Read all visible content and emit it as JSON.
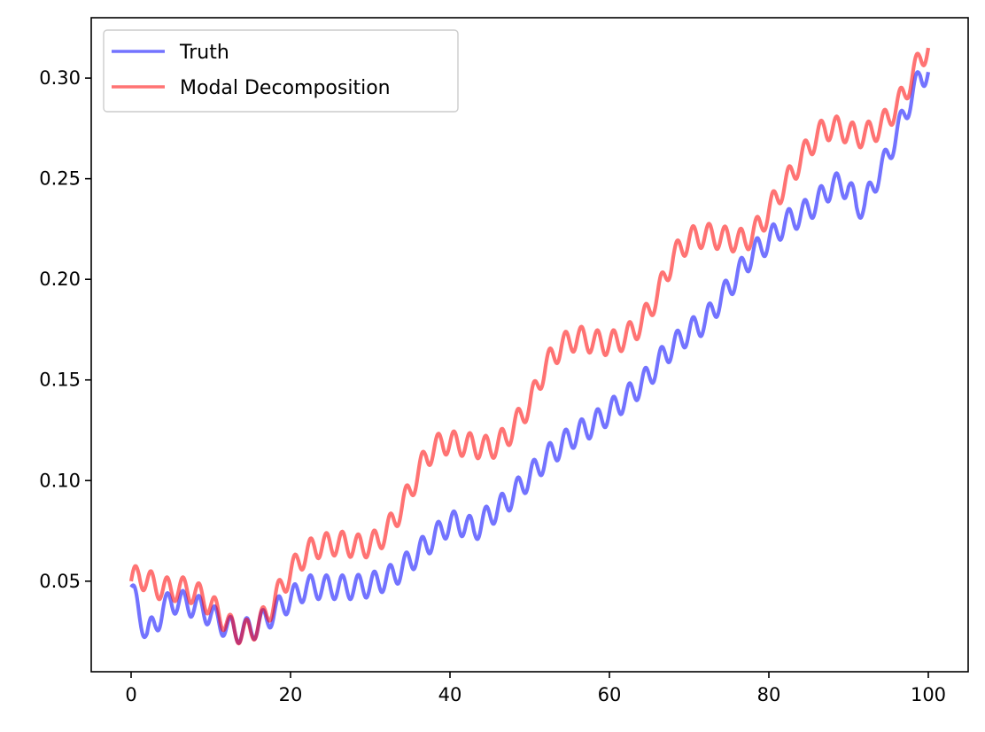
{
  "chart_data": {
    "type": "line",
    "title": "",
    "xlabel": "",
    "ylabel": "",
    "xlim": [
      -5,
      105
    ],
    "ylim": [
      0.005,
      0.33
    ],
    "xticks": [
      0,
      20,
      40,
      60,
      80,
      100
    ],
    "xtick_labels": [
      "0",
      "20",
      "40",
      "60",
      "80",
      "100"
    ],
    "yticks": [
      0.05,
      0.1,
      0.15,
      0.2,
      0.25,
      0.3
    ],
    "ytick_labels": [
      "0.05",
      "0.10",
      "0.15",
      "0.20",
      "0.25",
      "0.30"
    ],
    "grid": false,
    "legend_location": "upper left",
    "series": [
      {
        "name": "Truth",
        "color": "#0000ff",
        "alpha": 0.55,
        "oscillation_amplitude": 0.006,
        "oscillation_period": 2.0,
        "trend_points": [
          [
            0,
            0.047
          ],
          [
            1,
            0.034
          ],
          [
            2,
            0.024
          ],
          [
            3,
            0.028
          ],
          [
            4,
            0.036
          ],
          [
            5,
            0.04
          ],
          [
            7,
            0.039
          ],
          [
            9,
            0.036
          ],
          [
            11,
            0.03
          ],
          [
            13,
            0.025
          ],
          [
            15,
            0.026
          ],
          [
            17,
            0.031
          ],
          [
            18,
            0.035
          ],
          [
            20,
            0.041
          ],
          [
            22,
            0.047
          ],
          [
            25,
            0.047
          ],
          [
            28,
            0.047
          ],
          [
            30,
            0.048
          ],
          [
            33,
            0.053
          ],
          [
            35,
            0.06
          ],
          [
            37,
            0.068
          ],
          [
            40,
            0.079
          ],
          [
            42,
            0.078
          ],
          [
            43,
            0.075
          ],
          [
            45,
            0.083
          ],
          [
            47,
            0.089
          ],
          [
            50,
            0.102
          ],
          [
            52,
            0.111
          ],
          [
            55,
            0.121
          ],
          [
            58,
            0.128
          ],
          [
            60,
            0.134
          ],
          [
            63,
            0.144
          ],
          [
            65,
            0.152
          ],
          [
            67,
            0.163
          ],
          [
            70,
            0.174
          ],
          [
            72,
            0.179
          ],
          [
            75,
            0.196
          ],
          [
            78,
            0.213
          ],
          [
            80,
            0.219
          ],
          [
            82,
            0.228
          ],
          [
            84,
            0.232
          ],
          [
            86,
            0.238
          ],
          [
            88,
            0.247
          ],
          [
            90,
            0.246
          ],
          [
            91,
            0.236
          ],
          [
            92,
            0.237
          ],
          [
            93,
            0.246
          ],
          [
            95,
            0.262
          ],
          [
            97,
            0.282
          ],
          [
            99,
            0.301
          ],
          [
            100,
            0.303
          ]
        ]
      },
      {
        "name": "Modal Decomposition",
        "color": "#ff0000",
        "alpha": 0.55,
        "oscillation_amplitude": 0.006,
        "oscillation_period": 2.0,
        "trend_points": [
          [
            0,
            0.05
          ],
          [
            1,
            0.053
          ],
          [
            2,
            0.05
          ],
          [
            4,
            0.046
          ],
          [
            7,
            0.046
          ],
          [
            9,
            0.042
          ],
          [
            11,
            0.034
          ],
          [
            13,
            0.025
          ],
          [
            15,
            0.025
          ],
          [
            17,
            0.033
          ],
          [
            19,
            0.048
          ],
          [
            21,
            0.06
          ],
          [
            23,
            0.067
          ],
          [
            26,
            0.069
          ],
          [
            29,
            0.067
          ],
          [
            31,
            0.07
          ],
          [
            33,
            0.08
          ],
          [
            35,
            0.095
          ],
          [
            37,
            0.112
          ],
          [
            39,
            0.119
          ],
          [
            42,
            0.118
          ],
          [
            45,
            0.116
          ],
          [
            47,
            0.121
          ],
          [
            50,
            0.138
          ],
          [
            52,
            0.157
          ],
          [
            54,
            0.167
          ],
          [
            56,
            0.171
          ],
          [
            58,
            0.169
          ],
          [
            60,
            0.168
          ],
          [
            62,
            0.171
          ],
          [
            64,
            0.178
          ],
          [
            66,
            0.192
          ],
          [
            68,
            0.211
          ],
          [
            70,
            0.22
          ],
          [
            72,
            0.222
          ],
          [
            75,
            0.22
          ],
          [
            77,
            0.219
          ],
          [
            79,
            0.227
          ],
          [
            81,
            0.241
          ],
          [
            83,
            0.253
          ],
          [
            85,
            0.266
          ],
          [
            87,
            0.275
          ],
          [
            89,
            0.275
          ],
          [
            91,
            0.271
          ],
          [
            93,
            0.273
          ],
          [
            95,
            0.28
          ],
          [
            97,
            0.292
          ],
          [
            99,
            0.31
          ],
          [
            100,
            0.315
          ]
        ]
      }
    ]
  }
}
